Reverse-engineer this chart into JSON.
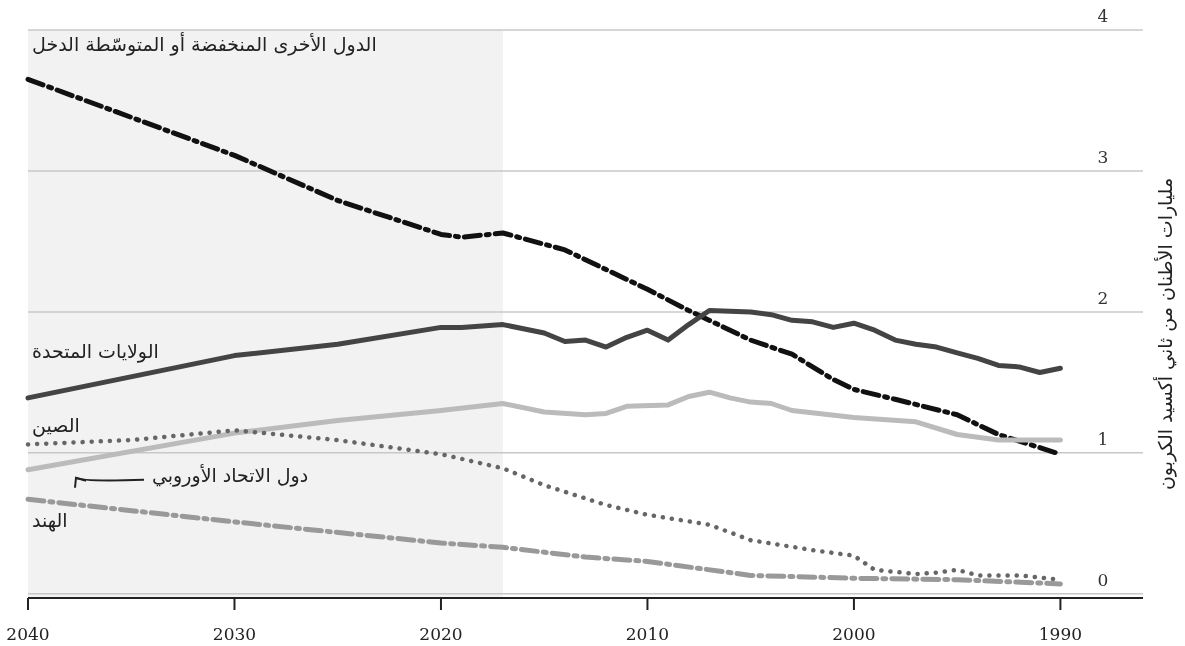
{
  "chart_data": {
    "type": "line",
    "ylabel": "مليارات الأطنان من ثاني أكسيد الكربون",
    "xlim": [
      2040,
      1986
    ],
    "xticks": [
      2040,
      2030,
      2020,
      2010,
      2000,
      1990
    ],
    "ylim": [
      -0.03,
      4
    ],
    "yticks": [
      0,
      1,
      2,
      3,
      4
    ],
    "grid": "y",
    "bands": [
      {
        "axis": "x",
        "from": 2040,
        "to": 2017,
        "color": "#f2f2f2"
      }
    ],
    "series": [
      {
        "name": "الدول الأخرى المنخفضة أو المتوسّطة الدخل",
        "color": "#111111",
        "line_style": "dashed",
        "x": [
          2040,
          2030,
          2025,
          2020,
          2019,
          2017,
          2014,
          2012,
          2010,
          2008,
          2005,
          2003,
          2001,
          2000,
          1998,
          1995,
          1993,
          1990
        ],
        "values": [
          3.65,
          3.11,
          2.79,
          2.55,
          2.53,
          2.56,
          2.44,
          2.3,
          2.16,
          2.01,
          1.8,
          1.7,
          1.52,
          1.45,
          1.38,
          1.27,
          1.13,
          0.99
        ]
      },
      {
        "name": "الولايات المتحدة",
        "color": "#444444",
        "line_style": "solid",
        "x": [
          2040,
          2030,
          2025,
          2020,
          2019,
          2017,
          2015,
          2014,
          2013,
          2012,
          2011,
          2010,
          2009,
          2008,
          2007,
          2005,
          2004,
          2003,
          2002,
          2001,
          2000,
          1999,
          1998,
          1997,
          1996,
          1995,
          1994,
          1993,
          1992,
          1991,
          1990
        ],
        "values": [
          1.39,
          1.69,
          1.77,
          1.89,
          1.89,
          1.91,
          1.85,
          1.79,
          1.8,
          1.75,
          1.82,
          1.87,
          1.8,
          1.91,
          2.01,
          2.0,
          1.98,
          1.94,
          1.93,
          1.89,
          1.92,
          1.87,
          1.8,
          1.77,
          1.75,
          1.71,
          1.67,
          1.62,
          1.61,
          1.57,
          1.6
        ]
      },
      {
        "name": "دول الاتحاد الأوروبي",
        "color": "#bbbbbb",
        "line_style": "solid",
        "x": [
          2040,
          2030,
          2025,
          2020,
          2017,
          2015,
          2013,
          2012,
          2011,
          2009,
          2008,
          2007,
          2006,
          2005,
          2004,
          2003,
          2000,
          1997,
          1995,
          1993,
          1990
        ],
        "values": [
          0.88,
          1.14,
          1.23,
          1.3,
          1.35,
          1.29,
          1.27,
          1.28,
          1.33,
          1.34,
          1.4,
          1.43,
          1.39,
          1.36,
          1.35,
          1.3,
          1.25,
          1.22,
          1.13,
          1.09,
          1.09
        ]
      },
      {
        "name": "الصين",
        "color": "#666666",
        "line_style": "dotted",
        "x": [
          2040,
          2035,
          2030,
          2025,
          2020,
          2017,
          2015,
          2012,
          2010,
          2007,
          2005,
          2002,
          2000,
          1999,
          1997,
          1996,
          1995,
          1994,
          1992,
          1990
        ],
        "values": [
          1.06,
          1.09,
          1.16,
          1.09,
          0.99,
          0.89,
          0.77,
          0.63,
          0.56,
          0.49,
          0.38,
          0.31,
          0.27,
          0.17,
          0.14,
          0.15,
          0.17,
          0.13,
          0.13,
          0.1
        ]
      },
      {
        "name": "الهند",
        "color": "#999999",
        "line_style": "dashed",
        "x": [
          2040,
          2030,
          2020,
          2017,
          2013,
          2010,
          2005,
          2000,
          1995,
          1990
        ],
        "values": [
          0.67,
          0.51,
          0.36,
          0.33,
          0.26,
          0.23,
          0.13,
          0.11,
          0.1,
          0.07
        ]
      }
    ]
  }
}
